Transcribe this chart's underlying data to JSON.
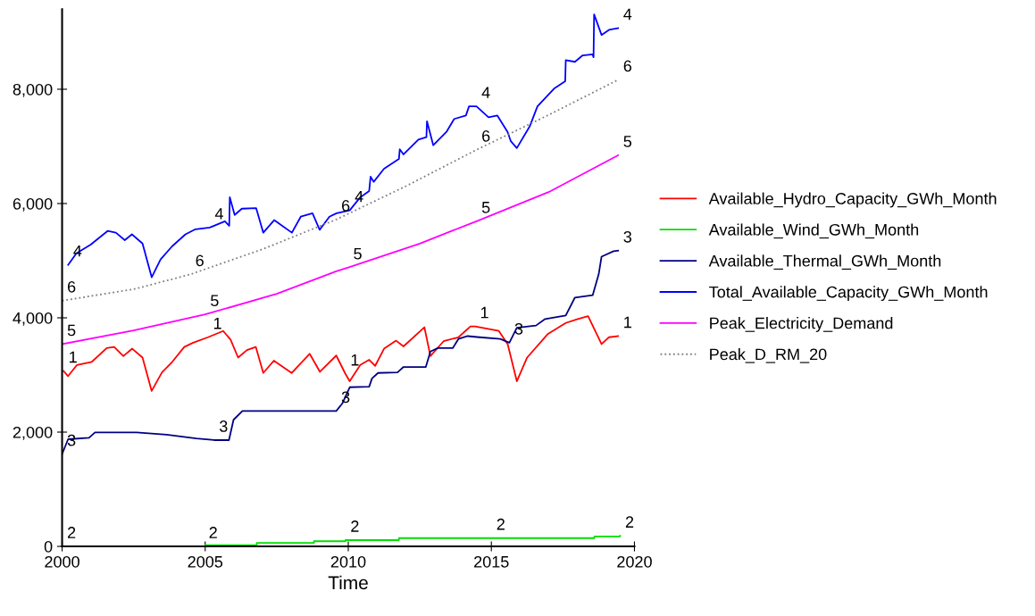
{
  "chart_data": {
    "type": "line",
    "xlabel": "Time",
    "xlim": [
      2000,
      2020
    ],
    "xticks": [
      2000,
      2005,
      2010,
      2015,
      2020
    ],
    "ylim": [
      0,
      9400
    ],
    "yticks": [
      0,
      {
        "value": 2000,
        "label": "2,000"
      },
      {
        "value": 4000,
        "label": "4,000"
      },
      {
        "value": 6000,
        "label": "6,000"
      },
      {
        "value": 8000,
        "label": "8,000"
      }
    ],
    "grid": false,
    "legend": "right",
    "marker": "none",
    "series": [
      {
        "name": "Available_Hydro_Capacity_GWh_Month",
        "color": "#ff0000",
        "x": [
          2000.05,
          2000.21,
          2000.52,
          2001.04,
          2001.56,
          2001.82,
          2002.14,
          2002.45,
          2002.81,
          2003.13,
          2003.49,
          2003.85,
          2004.27,
          2004.58,
          2005.1,
          2005.63,
          2005.89,
          2006.15,
          2006.46,
          2006.77,
          2007.03,
          2007.4,
          2008.02,
          2008.65,
          2009.01,
          2009.58,
          2009.9,
          2010.05,
          2010.42,
          2010.73,
          2010.94,
          2011.25,
          2011.67,
          2011.93,
          2012.66,
          2012.87,
          2013.33,
          2013.85,
          2014.27,
          2014.43,
          2015.26,
          2015.57,
          2015.89,
          2016.25,
          2016.98,
          2017.6,
          2018.02,
          2018.38,
          2018.85,
          2019.11,
          2019.43
        ],
        "values": [
          3070,
          2980,
          3175,
          3230,
          3470,
          3490,
          3330,
          3460,
          3305,
          2720,
          3045,
          3230,
          3490,
          3565,
          3660,
          3770,
          3615,
          3305,
          3435,
          3490,
          3035,
          3250,
          3035,
          3370,
          3055,
          3340,
          3020,
          2890,
          3175,
          3265,
          3160,
          3460,
          3600,
          3500,
          3835,
          3330,
          3590,
          3660,
          3850,
          3850,
          3770,
          3540,
          2890,
          3305,
          3720,
          3910,
          3980,
          4030,
          3540,
          3660,
          3680
        ]
      },
      {
        "name": "Available_Wind_GWh_Month",
        "color": "#00e000",
        "type": "step",
        "x": [
          2000,
          2004.95,
          2005.0,
          2006.8,
          2008.8,
          2009.9,
          2011.77,
          2015,
          2018.6,
          2019.5
        ],
        "values": [
          0,
          0,
          20,
          60,
          90,
          110,
          145,
          145,
          175,
          185
        ]
      },
      {
        "name": "Available_Thermal_GWh_Month",
        "color": "#000080",
        "x": [
          2000.0,
          2000.21,
          2000.94,
          2001.15,
          2002.6,
          2003.65,
          2004.69,
          2005.31,
          2005.83,
          2005.99,
          2006.3,
          2009.58,
          2009.79,
          2010.05,
          2010.73,
          2010.83,
          2011.04,
          2011.72,
          2011.93,
          2012.71,
          2012.87,
          2013.13,
          2013.65,
          2013.85,
          2014.17,
          2014.58,
          2015.31,
          2015.63,
          2015.89,
          2016.56,
          2016.88,
          2017.6,
          2017.92,
          2018.54,
          2018.75,
          2018.85,
          2019.27,
          2019.43
        ],
        "values": [
          1615,
          1875,
          1900,
          1995,
          1995,
          1955,
          1890,
          1860,
          1860,
          2215,
          2370,
          2370,
          2500,
          2785,
          2795,
          2940,
          3035,
          3045,
          3140,
          3140,
          3410,
          3470,
          3470,
          3630,
          3680,
          3660,
          3630,
          3565,
          3825,
          3865,
          3980,
          4040,
          4355,
          4395,
          4760,
          5070,
          5165,
          5175
        ]
      },
      {
        "name": "Total_Available_Capacity_GWh_Month",
        "color": "#0000ff",
        "x": [
          2000.21,
          2000.5,
          2001.0,
          2001.59,
          2001.88,
          2002.19,
          2002.44,
          2002.81,
          2003.13,
          2003.44,
          2003.84,
          2004.31,
          2004.66,
          2005.16,
          2005.69,
          2005.84,
          2005.86,
          2006.03,
          2006.28,
          2006.78,
          2007.03,
          2007.41,
          2008.03,
          2008.34,
          2008.75,
          2009.0,
          2009.34,
          2009.59,
          2010.05,
          2010.42,
          2010.73,
          2010.78,
          2010.89,
          2011.25,
          2011.77,
          2011.8,
          2011.93,
          2012.45,
          2012.73,
          2012.75,
          2012.97,
          2013.44,
          2013.7,
          2014.11,
          2014.22,
          2014.48,
          2014.9,
          2015.21,
          2015.57,
          2015.68,
          2015.89,
          2016.35,
          2016.61,
          2017.19,
          2017.58,
          2017.6,
          2017.92,
          2018.18,
          2018.54,
          2018.57,
          2018.59,
          2018.85,
          2019.11,
          2019.43
        ],
        "values": [
          4927,
          5130,
          5280,
          5520,
          5490,
          5360,
          5460,
          5300,
          4710,
          5020,
          5250,
          5460,
          5550,
          5580,
          5690,
          5610,
          6110,
          5800,
          5910,
          5920,
          5490,
          5710,
          5490,
          5770,
          5830,
          5540,
          5770,
          5830,
          5880,
          6110,
          6220,
          6470,
          6380,
          6610,
          6780,
          6950,
          6860,
          7120,
          7160,
          7440,
          7020,
          7260,
          7480,
          7540,
          7700,
          7700,
          7510,
          7540,
          7250,
          7090,
          6970,
          7360,
          7700,
          8010,
          8140,
          8510,
          8480,
          8590,
          8610,
          8560,
          9310,
          8950,
          9040,
          9070
        ]
      },
      {
        "name": "Peak_Electricity_Demand",
        "color": "#ff00ff",
        "x": [
          2000,
          2002.5,
          2005,
          2007.5,
          2009.58,
          2010,
          2012.5,
          2014.48,
          2017,
          2019.43
        ],
        "values": [
          3540,
          3780,
          4060,
          4420,
          4815,
          4880,
          5300,
          5690,
          6200,
          6845
        ]
      },
      {
        "name": "Peak_D_RM_20",
        "color": "#808080",
        "line_style": "dotted",
        "x": [
          2000,
          2002.5,
          2004.48,
          2007,
          2009.58,
          2012,
          2014.48,
          2017,
          2019.43
        ],
        "values": [
          4300,
          4500,
          4760,
          5200,
          5720,
          6300,
          6940,
          7550,
          8165
        ]
      }
    ],
    "annotations": [
      {
        "text": "1",
        "x": 2000.05,
        "y": 3070
      },
      {
        "text": "1",
        "x": 2005.1,
        "y": 3660
      },
      {
        "text": "1",
        "x": 2009.9,
        "y": 3020
      },
      {
        "text": "1",
        "x": 2014.43,
        "y": 3850
      },
      {
        "text": "1",
        "x": 2019.43,
        "y": 3680
      },
      {
        "text": "2",
        "x": 2000,
        "y": 0
      },
      {
        "text": "2",
        "x": 2004.95,
        "y": 0
      },
      {
        "text": "2",
        "x": 2009.9,
        "y": 110
      },
      {
        "text": "2",
        "x": 2015,
        "y": 145
      },
      {
        "text": "2",
        "x": 2019.5,
        "y": 185
      },
      {
        "text": "3",
        "x": 2000.0,
        "y": 1615
      },
      {
        "text": "3",
        "x": 2005.31,
        "y": 1860
      },
      {
        "text": "3",
        "x": 2009.58,
        "y": 2370
      },
      {
        "text": "3",
        "x": 2015.63,
        "y": 3565
      },
      {
        "text": "3",
        "x": 2019.43,
        "y": 5175
      },
      {
        "text": "4",
        "x": 2000.21,
        "y": 4927
      },
      {
        "text": "4",
        "x": 2005.16,
        "y": 5580
      },
      {
        "text": "4",
        "x": 2010.05,
        "y": 5880
      },
      {
        "text": "4",
        "x": 2014.48,
        "y": 7700
      },
      {
        "text": "4",
        "x": 2019.43,
        "y": 9070
      },
      {
        "text": "5",
        "x": 2000,
        "y": 3540
      },
      {
        "text": "5",
        "x": 2005,
        "y": 4060
      },
      {
        "text": "5",
        "x": 2010,
        "y": 4880
      },
      {
        "text": "5",
        "x": 2014.48,
        "y": 5690
      },
      {
        "text": "5",
        "x": 2019.43,
        "y": 6845
      },
      {
        "text": "6",
        "x": 2000,
        "y": 4300
      },
      {
        "text": "6",
        "x": 2004.48,
        "y": 4760
      },
      {
        "text": "6",
        "x": 2009.58,
        "y": 5720
      },
      {
        "text": "6",
        "x": 2014.48,
        "y": 6940
      },
      {
        "text": "6",
        "x": 2019.43,
        "y": 8165
      }
    ]
  }
}
